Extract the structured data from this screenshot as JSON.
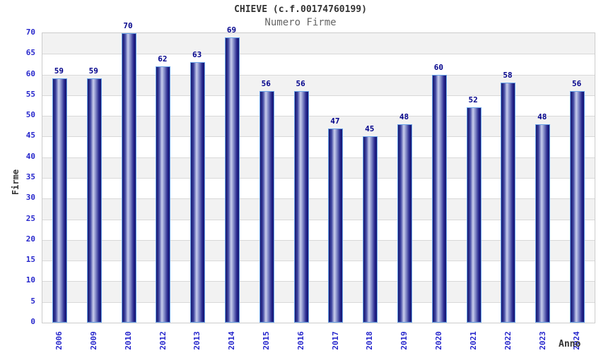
{
  "chart_data": {
    "type": "bar",
    "title": "CHIEVE (c.f.00174760199)",
    "subtitle": "Numero Firme",
    "xlabel": "Anno",
    "ylabel": "Firme",
    "categories": [
      "2006",
      "2009",
      "2010",
      "2012",
      "2013",
      "2014",
      "2015",
      "2016",
      "2017",
      "2018",
      "2019",
      "2020",
      "2021",
      "2022",
      "2023",
      "2024"
    ],
    "values": [
      59,
      59,
      70,
      62,
      63,
      69,
      56,
      56,
      47,
      45,
      48,
      60,
      52,
      58,
      48,
      56
    ],
    "ylim": [
      0,
      70
    ],
    "ytick_step": 5,
    "grid": "horizontal",
    "legend": "none",
    "colors": {
      "bar_edge": "#16166e",
      "bar_dark": "#23238c",
      "bar_mid": "#3d44a0",
      "bar_highlight": "#c9cfed",
      "bar_shadow_mid": "#8a92cc",
      "bar_border": "#6aa3e8",
      "value_label": "#00008b",
      "tick_label": "#2727cc",
      "band_gray": "#f2f2f2",
      "band_white": "#ffffff",
      "gridline": "#d9d9d9",
      "title": "#333333",
      "subtitle": "#666666"
    }
  }
}
